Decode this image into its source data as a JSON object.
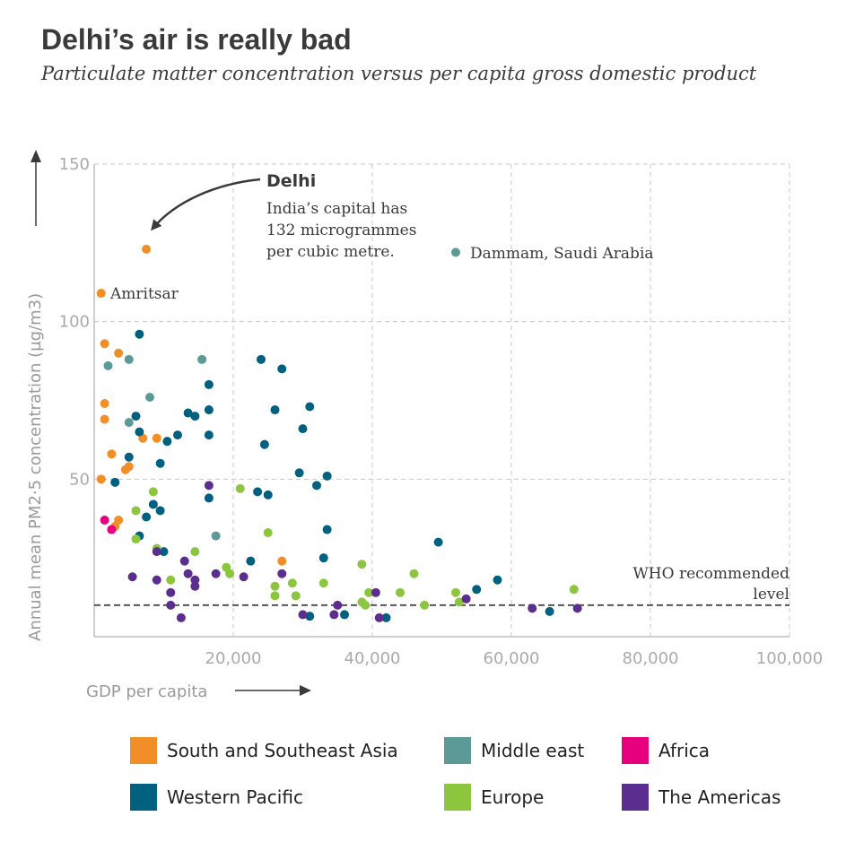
{
  "title": "Delhi’s air is really bad",
  "subtitle": "Particulate matter concentration versus per capita gross domestic product",
  "chart_data": {
    "type": "scatter",
    "xlabel": "GDP per capita",
    "ylabel": "Annual mean PM2·5 concentration (µg/m3)",
    "xlim": [
      0,
      100000
    ],
    "ylim": [
      0,
      150
    ],
    "x_ticks": [
      "20,000",
      "40,000",
      "60,000",
      "80,000",
      "100,000"
    ],
    "y_ticks": [
      "50",
      "100",
      "150"
    ],
    "grid": true,
    "who_level": 10,
    "who_label": [
      "WHO recommended",
      "level"
    ],
    "annotations": {
      "delhi_title": "Delhi",
      "delhi_text": [
        "India’s capital has",
        "132 microgrammes",
        "per cubic metre."
      ],
      "amritsar": "Amritsar",
      "dammam": "Dammam, Saudi Arabia"
    },
    "series": [
      {
        "name": "South and Southeast Asia",
        "color": "#f18e27",
        "points": [
          [
            7500,
            123
          ],
          [
            1000,
            109
          ],
          [
            1500,
            93
          ],
          [
            3500,
            90
          ],
          [
            1500,
            74
          ],
          [
            1500,
            69
          ],
          [
            7000,
            63
          ],
          [
            9000,
            63
          ],
          [
            2500,
            58
          ],
          [
            5000,
            54
          ],
          [
            4500,
            53
          ],
          [
            1000,
            50
          ],
          [
            3500,
            37
          ],
          [
            3000,
            35
          ],
          [
            27000,
            24
          ]
        ]
      },
      {
        "name": "Middle east",
        "color": "#5b9a97",
        "points": [
          [
            52000,
            122
          ],
          [
            2000,
            86
          ],
          [
            5000,
            88
          ],
          [
            15500,
            88
          ],
          [
            8000,
            76
          ],
          [
            5000,
            68
          ],
          [
            17500,
            32
          ]
        ]
      },
      {
        "name": "Western Pacific",
        "color": "#00607f",
        "points": [
          [
            6500,
            96
          ],
          [
            24000,
            88
          ],
          [
            27000,
            85
          ],
          [
            16500,
            80
          ],
          [
            31000,
            73
          ],
          [
            13500,
            71
          ],
          [
            14500,
            70
          ],
          [
            16500,
            72
          ],
          [
            26000,
            72
          ],
          [
            6000,
            70
          ],
          [
            30000,
            66
          ],
          [
            6500,
            65
          ],
          [
            12000,
            64
          ],
          [
            16500,
            64
          ],
          [
            10500,
            62
          ],
          [
            24500,
            61
          ],
          [
            5000,
            57
          ],
          [
            9500,
            55
          ],
          [
            29500,
            52
          ],
          [
            33500,
            51
          ],
          [
            3000,
            49
          ],
          [
            32000,
            48
          ],
          [
            23500,
            46
          ],
          [
            25000,
            45
          ],
          [
            16500,
            44
          ],
          [
            8500,
            42
          ],
          [
            9500,
            40
          ],
          [
            7500,
            38
          ],
          [
            33500,
            34
          ],
          [
            6500,
            32
          ],
          [
            49500,
            30
          ],
          [
            10000,
            27
          ],
          [
            22500,
            24
          ],
          [
            33000,
            25
          ],
          [
            58000,
            18
          ],
          [
            55000,
            15
          ],
          [
            36000,
            7
          ],
          [
            42000,
            6
          ],
          [
            65500,
            8
          ],
          [
            31000,
            6.5
          ]
        ]
      },
      {
        "name": "Europe",
        "color": "#8cc63f",
        "points": [
          [
            8500,
            46
          ],
          [
            21000,
            47
          ],
          [
            6000,
            40
          ],
          [
            25000,
            33
          ],
          [
            6000,
            31
          ],
          [
            9000,
            28
          ],
          [
            14500,
            27
          ],
          [
            38500,
            23
          ],
          [
            19000,
            22
          ],
          [
            19500,
            20
          ],
          [
            46000,
            20
          ],
          [
            11000,
            18
          ],
          [
            26000,
            16
          ],
          [
            28500,
            17
          ],
          [
            33000,
            17
          ],
          [
            39500,
            14
          ],
          [
            44000,
            14
          ],
          [
            52000,
            14
          ],
          [
            69000,
            15
          ],
          [
            26000,
            13
          ],
          [
            29000,
            13
          ],
          [
            38500,
            11
          ],
          [
            39000,
            10
          ],
          [
            47500,
            10
          ],
          [
            52500,
            11
          ]
        ]
      },
      {
        "name": "Africa",
        "color": "#e6007e",
        "points": [
          [
            1500,
            37
          ],
          [
            2500,
            34
          ]
        ]
      },
      {
        "name": "The Americas",
        "color": "#5b2d8e",
        "points": [
          [
            16500,
            48
          ],
          [
            9000,
            27
          ],
          [
            13000,
            24
          ],
          [
            5500,
            19
          ],
          [
            9000,
            18
          ],
          [
            14500,
            18
          ],
          [
            13500,
            20
          ],
          [
            17500,
            20
          ],
          [
            21500,
            19
          ],
          [
            27000,
            20
          ],
          [
            14500,
            16
          ],
          [
            11000,
            14
          ],
          [
            11000,
            10
          ],
          [
            12500,
            6
          ],
          [
            30000,
            7
          ],
          [
            34500,
            7
          ],
          [
            35000,
            10
          ],
          [
            40500,
            14
          ],
          [
            41000,
            6
          ],
          [
            53500,
            12
          ],
          [
            63000,
            9
          ],
          [
            69500,
            9
          ]
        ]
      }
    ]
  }
}
